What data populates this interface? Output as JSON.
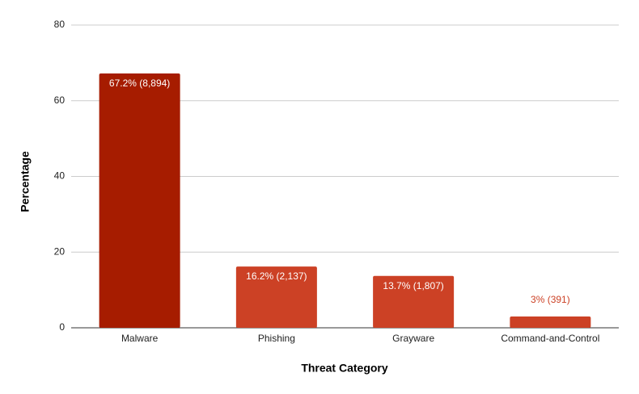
{
  "chart_data": {
    "type": "bar",
    "x_label": "Threat Category",
    "y_label": "Percentage",
    "categories": [
      "Malware",
      "Phishing",
      "Grayware",
      "Command-and-Control"
    ],
    "values": [
      67.2,
      16.2,
      13.7,
      3
    ],
    "value_labels": [
      "67.2% (8,894)",
      "16.2% (2,137)",
      "13.7% (1,807)",
      "3% (391)"
    ],
    "colors": [
      "#a61c00",
      "#cc4125",
      "#cc4125",
      "#cc4125"
    ],
    "ylim": [
      0,
      80
    ],
    "yticks": [
      0,
      20,
      40,
      60,
      80
    ],
    "grid": true
  }
}
